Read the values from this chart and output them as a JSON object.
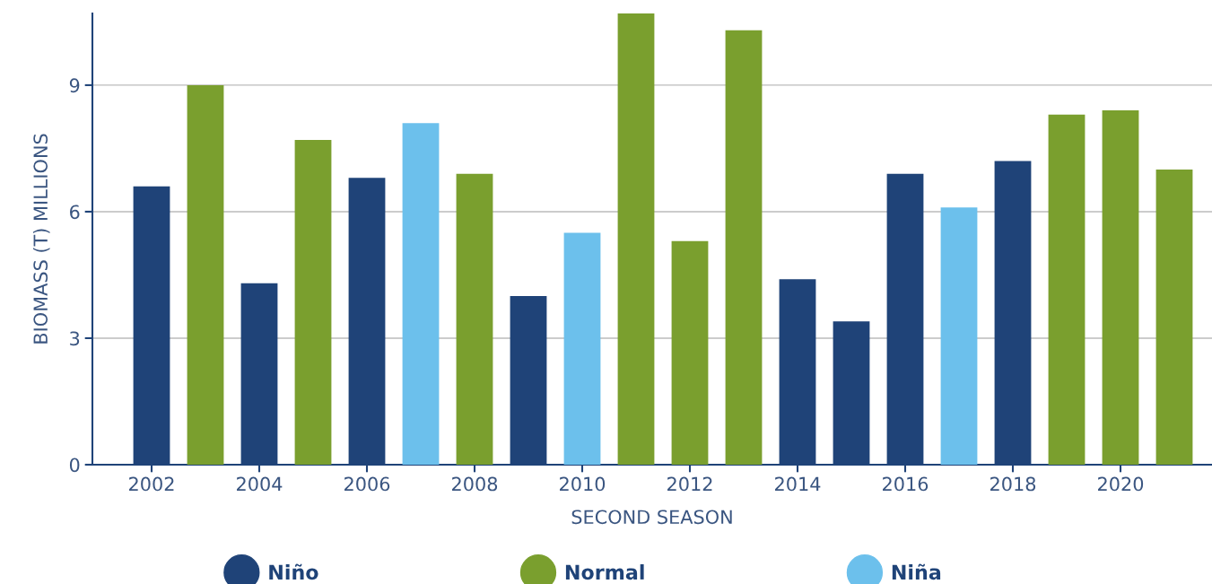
{
  "chart_data": {
    "type": "bar",
    "xlabel": "SECOND SEASON",
    "ylabel": "BIOMASS (T) MILLIONS",
    "x": [
      2002,
      2003,
      2004,
      2005,
      2006,
      2007,
      2008,
      2009,
      2010,
      2011,
      2012,
      2013,
      2014,
      2015,
      2016,
      2017,
      2018,
      2019,
      2020,
      2021
    ],
    "series": [
      {
        "name": "Niño",
        "color": "#1f4378",
        "values": [
          6.6,
          null,
          4.3,
          null,
          6.8,
          null,
          null,
          4.0,
          null,
          null,
          null,
          null,
          4.4,
          3.4,
          6.9,
          null,
          7.2,
          null,
          null,
          null
        ]
      },
      {
        "name": "Normal",
        "color": "#7a9f2e",
        "values": [
          null,
          9.0,
          null,
          7.7,
          null,
          null,
          6.9,
          null,
          null,
          10.7,
          5.3,
          10.3,
          null,
          null,
          null,
          null,
          null,
          8.3,
          8.4,
          7.0
        ]
      },
      {
        "name": "Niña",
        "color": "#6cc0ec",
        "values": [
          null,
          null,
          null,
          null,
          null,
          8.1,
          null,
          null,
          5.5,
          null,
          null,
          null,
          null,
          null,
          null,
          6.1,
          null,
          null,
          null,
          null
        ]
      }
    ],
    "xlim": [
      2000.9,
      2021.7
    ],
    "xticks": [
      2002,
      2004,
      2006,
      2008,
      2010,
      2012,
      2014,
      2016,
      2018,
      2020
    ],
    "ylim": [
      0,
      10.7
    ],
    "yticks": [
      0,
      3,
      6,
      9
    ],
    "grid": "y",
    "legend": "bottom"
  }
}
